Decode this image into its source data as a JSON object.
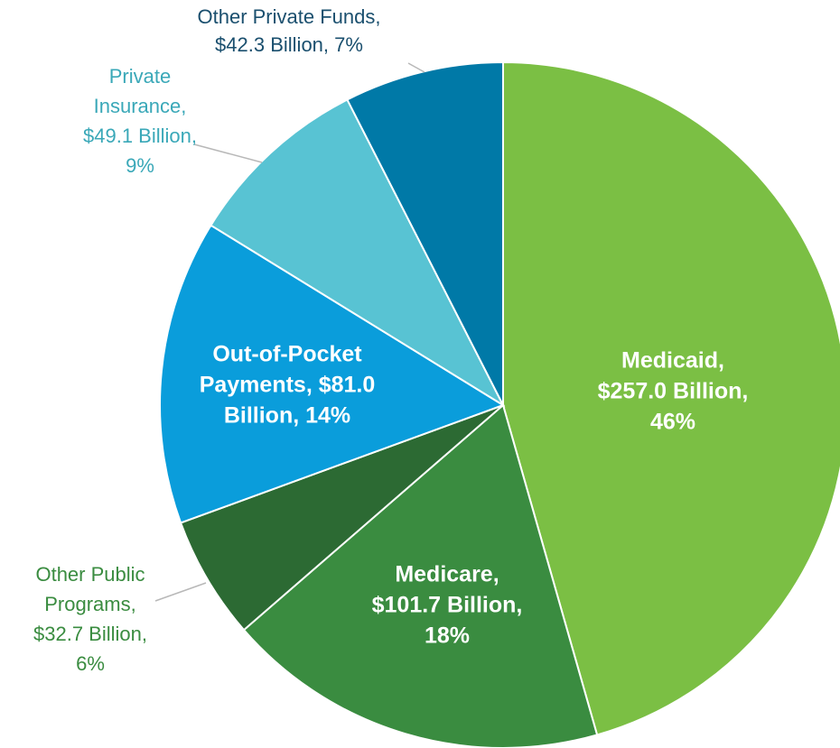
{
  "chart_data": {
    "type": "pie",
    "categories": [
      "Medicaid",
      "Medicare",
      "Other Public Programs",
      "Out-of-Pocket Payments",
      "Private Insurance",
      "Other Private Funds"
    ],
    "values": [
      257.0,
      101.7,
      32.7,
      81.0,
      49.1,
      42.3
    ],
    "labels": [
      [
        "Medicaid,",
        "$257.0 Billion,",
        "46%"
      ],
      [
        "Medicare,",
        "$101.7 Billion,",
        "18%"
      ],
      [
        "Other Public",
        "Programs,",
        "$32.7 Billion,",
        "6%"
      ],
      [
        "Out-of-Pocket",
        "Payments, $81.0",
        "Billion, 14%"
      ],
      [
        "Private",
        "Insurance,",
        "$49.1 Billion,",
        "9%"
      ],
      [
        "Other Private Funds,",
        "$42.3 Billion, 7%"
      ]
    ],
    "colors": [
      "#7bbf44",
      "#3a8c40",
      "#2c6a33",
      "#0a9ddb",
      "#58c3d3",
      "#0079a7"
    ]
  }
}
